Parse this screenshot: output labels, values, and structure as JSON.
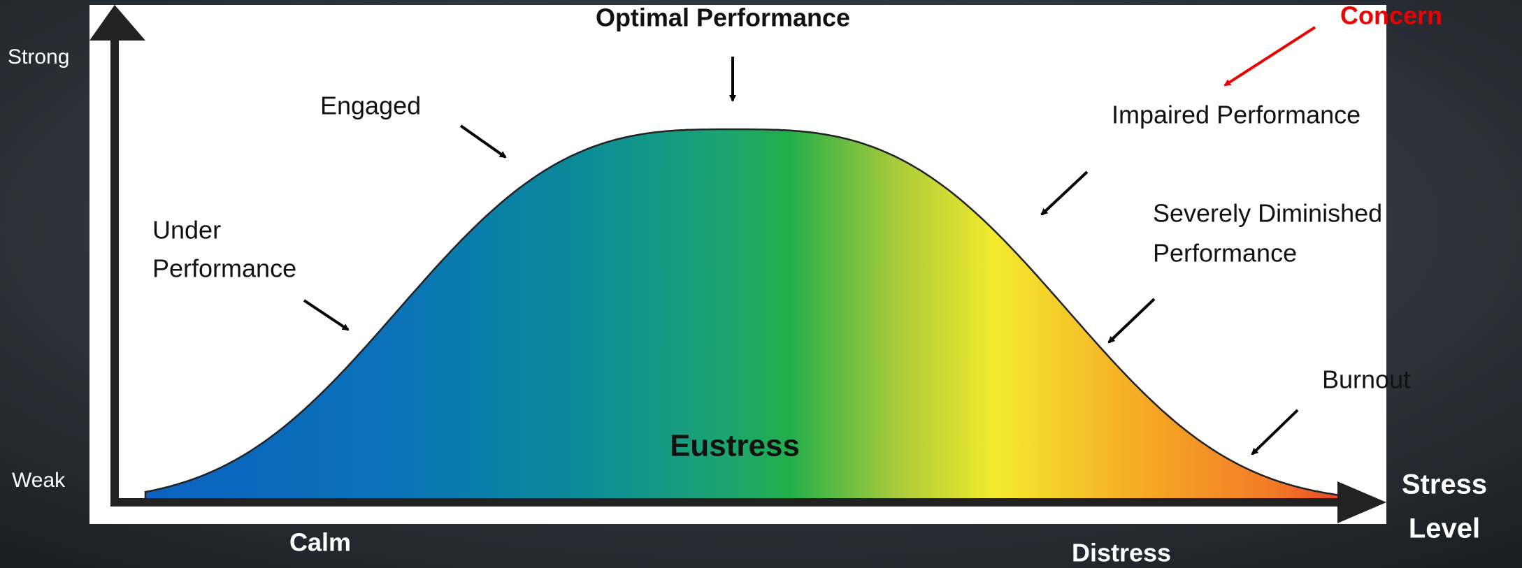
{
  "axis": {
    "y_top": "Strong",
    "y_bottom": "Weak",
    "x_label": [
      "Stress",
      "Level"
    ],
    "x_left": "Calm",
    "x_right": "Distress"
  },
  "labels": {
    "optimal": "Optimal Performance",
    "concern": "Concern",
    "engaged": "Engaged",
    "impaired": "Impaired Performance",
    "severe": [
      "Severely Diminished",
      "Performance"
    ],
    "under": [
      "Under",
      "Performance"
    ],
    "burnout": "Burnout",
    "center": "Eustress"
  }
}
